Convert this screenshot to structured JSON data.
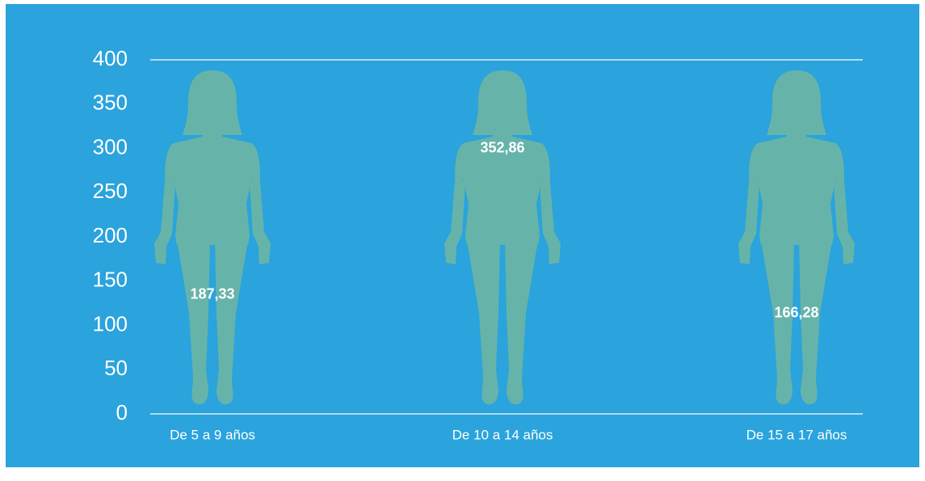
{
  "chart_data": {
    "type": "pictograph",
    "categories": [
      "De 5 a 9 años",
      "De 10 a 14 años",
      "De 15 a 17 años"
    ],
    "values": [
      187.33,
      352.86,
      166.28
    ],
    "value_labels": [
      "187,33",
      "352,86",
      "166,28"
    ],
    "color": "#f7e22b",
    "empty_color": "#66b4a9",
    "background": "#2ba3dc",
    "ylim": [
      0,
      400
    ],
    "yticks": [
      0,
      50,
      100,
      150,
      200,
      250,
      300,
      350,
      400
    ]
  }
}
